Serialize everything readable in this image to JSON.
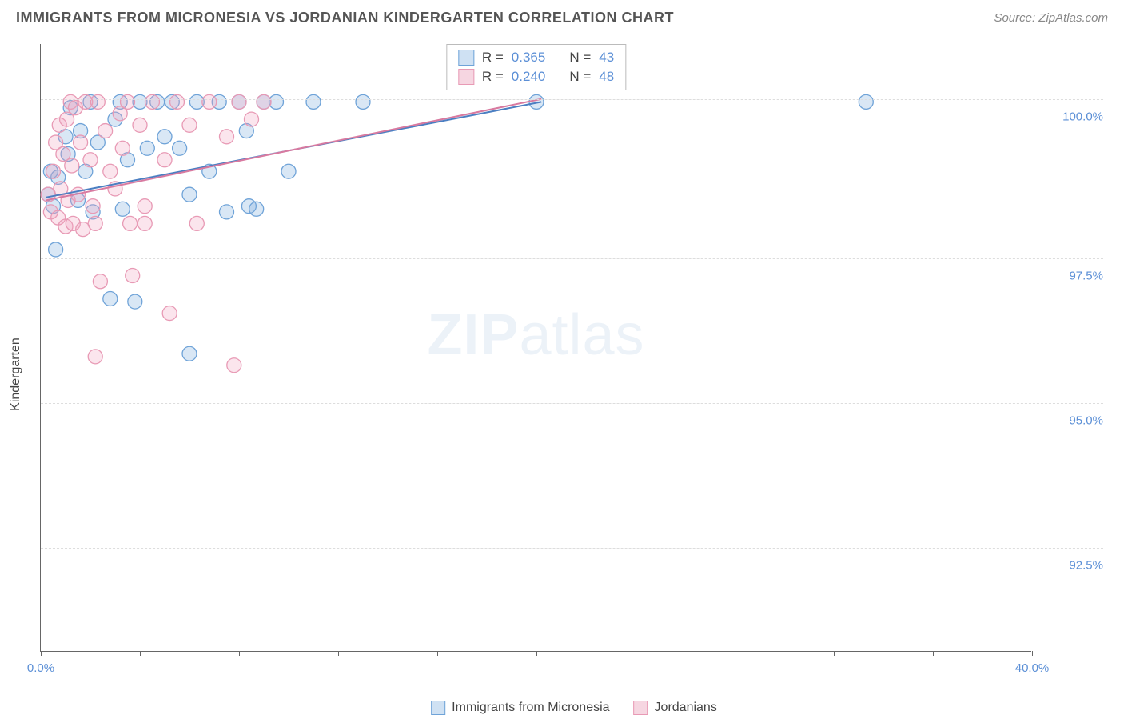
{
  "title": "IMMIGRANTS FROM MICRONESIA VS JORDANIAN KINDERGARTEN CORRELATION CHART",
  "source": "Source: ZipAtlas.com",
  "y_axis_label": "Kindergarten",
  "watermark": {
    "bold": "ZIP",
    "rest": "atlas"
  },
  "chart": {
    "type": "scatter",
    "xlim": [
      0,
      40
    ],
    "ylim": [
      90.7,
      101.2
    ],
    "x_ticks": [
      0,
      4,
      8,
      12,
      16,
      20,
      24,
      28,
      32,
      36,
      40
    ],
    "x_tick_labels": {
      "0": "0.0%",
      "40": "40.0%"
    },
    "y_gridlines": [
      92.5,
      95.0,
      97.5,
      100.25
    ],
    "y_tick_labels": {
      "92.5": "92.5%",
      "95.0": "95.0%",
      "97.5": "97.5%",
      "100.25": "100.0%"
    },
    "background_color": "#ffffff",
    "grid_color": "#dddddd",
    "axis_color": "#666666",
    "marker_radius": 9,
    "marker_stroke_width": 1.3,
    "series": [
      {
        "name": "Immigrants from Micronesia",
        "fill": "rgba(120,170,220,0.28)",
        "stroke": "#6fa3d8",
        "swatch_fill": "#cfe1f3",
        "swatch_stroke": "#6fa3d8",
        "R": "0.365",
        "N": "43",
        "trend": {
          "x1": 0.2,
          "y1": 98.55,
          "x2": 20.2,
          "y2": 100.2,
          "color": "#4b7fc2",
          "width": 2
        },
        "points": [
          [
            0.3,
            98.6
          ],
          [
            0.4,
            99.0
          ],
          [
            0.5,
            98.4
          ],
          [
            0.6,
            97.65
          ],
          [
            0.7,
            98.9
          ],
          [
            1.0,
            99.6
          ],
          [
            1.1,
            99.3
          ],
          [
            1.2,
            100.1
          ],
          [
            1.5,
            98.5
          ],
          [
            1.6,
            99.7
          ],
          [
            1.8,
            99.0
          ],
          [
            2.0,
            100.2
          ],
          [
            2.1,
            98.3
          ],
          [
            2.3,
            99.5
          ],
          [
            2.8,
            96.8
          ],
          [
            3.0,
            99.9
          ],
          [
            3.2,
            100.2
          ],
          [
            3.3,
            98.35
          ],
          [
            3.5,
            99.2
          ],
          [
            4.0,
            100.2
          ],
          [
            3.8,
            96.75
          ],
          [
            4.3,
            99.4
          ],
          [
            4.7,
            100.2
          ],
          [
            5.0,
            99.6
          ],
          [
            5.3,
            100.2
          ],
          [
            5.6,
            99.4
          ],
          [
            6.0,
            98.6
          ],
          [
            6.3,
            100.2
          ],
          [
            6.0,
            95.85
          ],
          [
            6.8,
            99.0
          ],
          [
            7.2,
            100.2
          ],
          [
            7.5,
            98.3
          ],
          [
            8.0,
            100.2
          ],
          [
            8.3,
            99.7
          ],
          [
            8.4,
            98.4
          ],
          [
            8.7,
            98.35
          ],
          [
            9.0,
            100.2
          ],
          [
            9.5,
            100.2
          ],
          [
            10.0,
            99.0
          ],
          [
            11.0,
            100.2
          ],
          [
            13.0,
            100.2
          ],
          [
            20.0,
            100.2
          ],
          [
            33.3,
            100.2
          ]
        ]
      },
      {
        "name": "Jordanians",
        "fill": "rgba(240,160,190,0.28)",
        "stroke": "#e89ab5",
        "swatch_fill": "#f6d6e1",
        "swatch_stroke": "#e89ab5",
        "R": "0.240",
        "N": "48",
        "trend": {
          "x1": 0.2,
          "y1": 98.5,
          "x2": 20.2,
          "y2": 100.25,
          "color": "#d87aa0",
          "width": 2
        },
        "points": [
          [
            0.3,
            98.6
          ],
          [
            0.4,
            98.3
          ],
          [
            0.5,
            99.0
          ],
          [
            0.6,
            99.5
          ],
          [
            0.7,
            98.2
          ],
          [
            0.75,
            99.8
          ],
          [
            0.8,
            98.7
          ],
          [
            0.9,
            99.3
          ],
          [
            1.0,
            98.05
          ],
          [
            1.05,
            99.9
          ],
          [
            1.1,
            98.5
          ],
          [
            1.2,
            100.2
          ],
          [
            1.25,
            99.1
          ],
          [
            1.3,
            98.1
          ],
          [
            1.4,
            100.1
          ],
          [
            1.5,
            98.6
          ],
          [
            1.6,
            99.5
          ],
          [
            1.7,
            98.0
          ],
          [
            1.8,
            100.2
          ],
          [
            2.0,
            99.2
          ],
          [
            2.1,
            98.4
          ],
          [
            2.2,
            98.1
          ],
          [
            2.2,
            95.8
          ],
          [
            2.3,
            100.2
          ],
          [
            2.4,
            97.1
          ],
          [
            2.6,
            99.7
          ],
          [
            2.8,
            99.0
          ],
          [
            3.0,
            98.7
          ],
          [
            3.2,
            100.0
          ],
          [
            3.3,
            99.4
          ],
          [
            3.5,
            100.2
          ],
          [
            3.6,
            98.1
          ],
          [
            3.7,
            97.2
          ],
          [
            4.0,
            99.8
          ],
          [
            4.2,
            98.4
          ],
          [
            4.2,
            98.1
          ],
          [
            4.5,
            100.2
          ],
          [
            5.0,
            99.2
          ],
          [
            5.2,
            96.55
          ],
          [
            5.5,
            100.2
          ],
          [
            6.0,
            99.8
          ],
          [
            6.3,
            98.1
          ],
          [
            6.8,
            100.2
          ],
          [
            7.5,
            99.6
          ],
          [
            7.8,
            95.65
          ],
          [
            8.0,
            100.2
          ],
          [
            8.5,
            99.9
          ],
          [
            9.0,
            100.2
          ]
        ]
      }
    ]
  },
  "legend_bottom": [
    {
      "label": "Immigrants from Micronesia",
      "series": 0
    },
    {
      "label": "Jordanians",
      "series": 1
    }
  ]
}
